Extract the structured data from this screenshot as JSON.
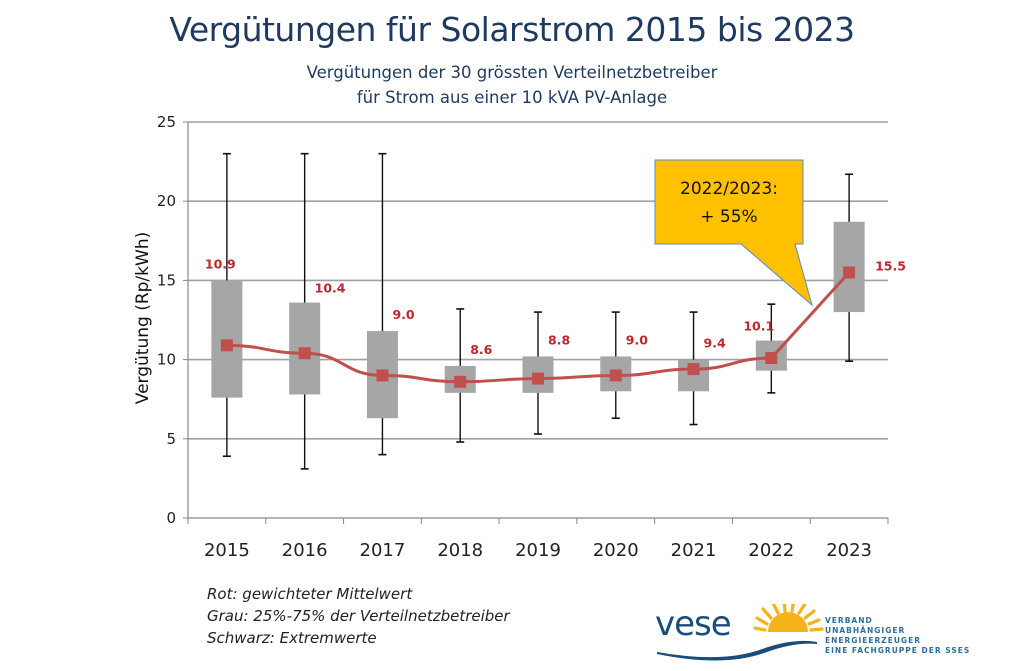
{
  "chart_data": {
    "type": "boxplot",
    "title": "Vergütungen für Solarstrom 2015 bis 2023",
    "subtitle_lines": [
      "Vergütungen der 30 grössten Verteilnetzbetreiber",
      "für Strom aus einer 10 kVA PV-Anlage"
    ],
    "xlabel": "",
    "ylabel": "Vergütung (Rp/kWh)",
    "ylim": [
      0,
      25
    ],
    "yticks": [
      0,
      5,
      10,
      15,
      20,
      25
    ],
    "grid": true,
    "categories": [
      "2015",
      "2016",
      "2017",
      "2018",
      "2019",
      "2020",
      "2021",
      "2022",
      "2023"
    ],
    "series": [
      {
        "name": "Extremwerte max",
        "color": "#111111",
        "values": [
          23.0,
          23.0,
          23.0,
          13.2,
          13.0,
          13.0,
          13.0,
          13.5,
          21.7
        ]
      },
      {
        "name": "Extremwerte min",
        "color": "#111111",
        "values": [
          3.9,
          3.1,
          4.0,
          4.8,
          5.3,
          6.3,
          5.9,
          7.9,
          9.9
        ]
      },
      {
        "name": "75% Quantil",
        "color": "#a6a6a6",
        "values": [
          15.0,
          13.6,
          11.8,
          9.6,
          10.2,
          10.2,
          10.0,
          11.2,
          18.7
        ]
      },
      {
        "name": "25% Quantil",
        "color": "#a6a6a6",
        "values": [
          7.6,
          7.8,
          6.3,
          7.9,
          7.9,
          8.0,
          8.0,
          9.3,
          13.0
        ]
      },
      {
        "name": "gewichteter Mittelwert",
        "color": "#c0504d",
        "values": [
          10.9,
          10.4,
          9.0,
          8.6,
          8.8,
          9.0,
          9.4,
          10.1,
          15.5
        ]
      }
    ],
    "data_labels": [
      "10.9",
      "10.4",
      "9.0",
      "8.6",
      "8.8",
      "9.0",
      "9.4",
      "10.1",
      "15.5"
    ],
    "annotation": {
      "lines": [
        "2022/2023:",
        "+ 55%"
      ],
      "color": "#ffc000",
      "points_to": "2022-2023 segment"
    }
  },
  "legend_notes": [
    "Rot: gewichteter Mittelwert",
    "Grau: 25%-75% der Verteilnetzbetreiber",
    "Schwarz: Extremwerte"
  ],
  "logo": {
    "word": "vese",
    "lines": [
      "VERBAND",
      "UNABHÄNGIGER ENERGIEERZEUGER",
      "EINE FACHGRUPPE DER SSES"
    ]
  }
}
